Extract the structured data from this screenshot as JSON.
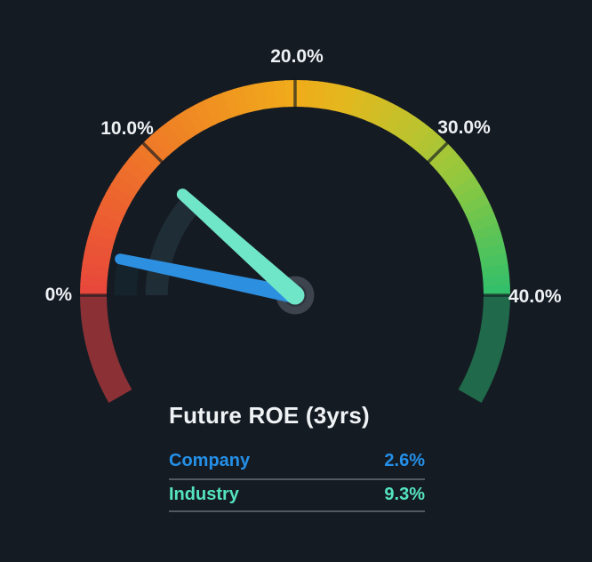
{
  "page": {
    "background_color": "#151b23"
  },
  "chart_data": {
    "type": "gauge",
    "title": "Future ROE (3yrs)",
    "unit": "%",
    "min": 0,
    "max": 40,
    "scale_start_angle_deg": 180,
    "scale_end_angle_deg": 0,
    "overflow_extension_deg": 30,
    "tick_values": [
      0,
      10,
      20,
      30,
      40
    ],
    "tick_labels": [
      "0%",
      "10.0%",
      "20.0%",
      "30.0%",
      "40.0%"
    ],
    "tick_label_color": "#eef1f4",
    "series": [
      {
        "name": "Company",
        "value": 2.6,
        "display": "2.6%",
        "needle_color": "#2d8fdf",
        "text_color": "#2490e8",
        "trail_color": "#15232c"
      },
      {
        "name": "Industry",
        "value": 9.3,
        "display": "9.3%",
        "needle_color": "#70e6c9",
        "text_color": "#55e3c0",
        "trail_color": "#1f2d37"
      }
    ],
    "arc_gradient_stops": [
      {
        "t": 0.0,
        "color": "#e8473c"
      },
      {
        "t": 0.13,
        "color": "#ec5f31"
      },
      {
        "t": 0.27,
        "color": "#ef7d26"
      },
      {
        "t": 0.42,
        "color": "#f09c1e"
      },
      {
        "t": 0.5,
        "color": "#f0ab1b"
      },
      {
        "t": 0.58,
        "color": "#e3b81e"
      },
      {
        "t": 0.7,
        "color": "#bdc32e"
      },
      {
        "t": 0.8,
        "color": "#93c83e"
      },
      {
        "t": 0.9,
        "color": "#5fc455"
      },
      {
        "t": 1.0,
        "color": "#30bf6c"
      }
    ],
    "under_min_arc_color": "#8b3136",
    "over_max_arc_color": "#20694a",
    "tick_mark_color": "rgba(15,23,31,0.65)",
    "hub_outer_color": "#3e444d",
    "hub_inner_color": "#2f353d",
    "legend_divider_color": "#525962"
  }
}
